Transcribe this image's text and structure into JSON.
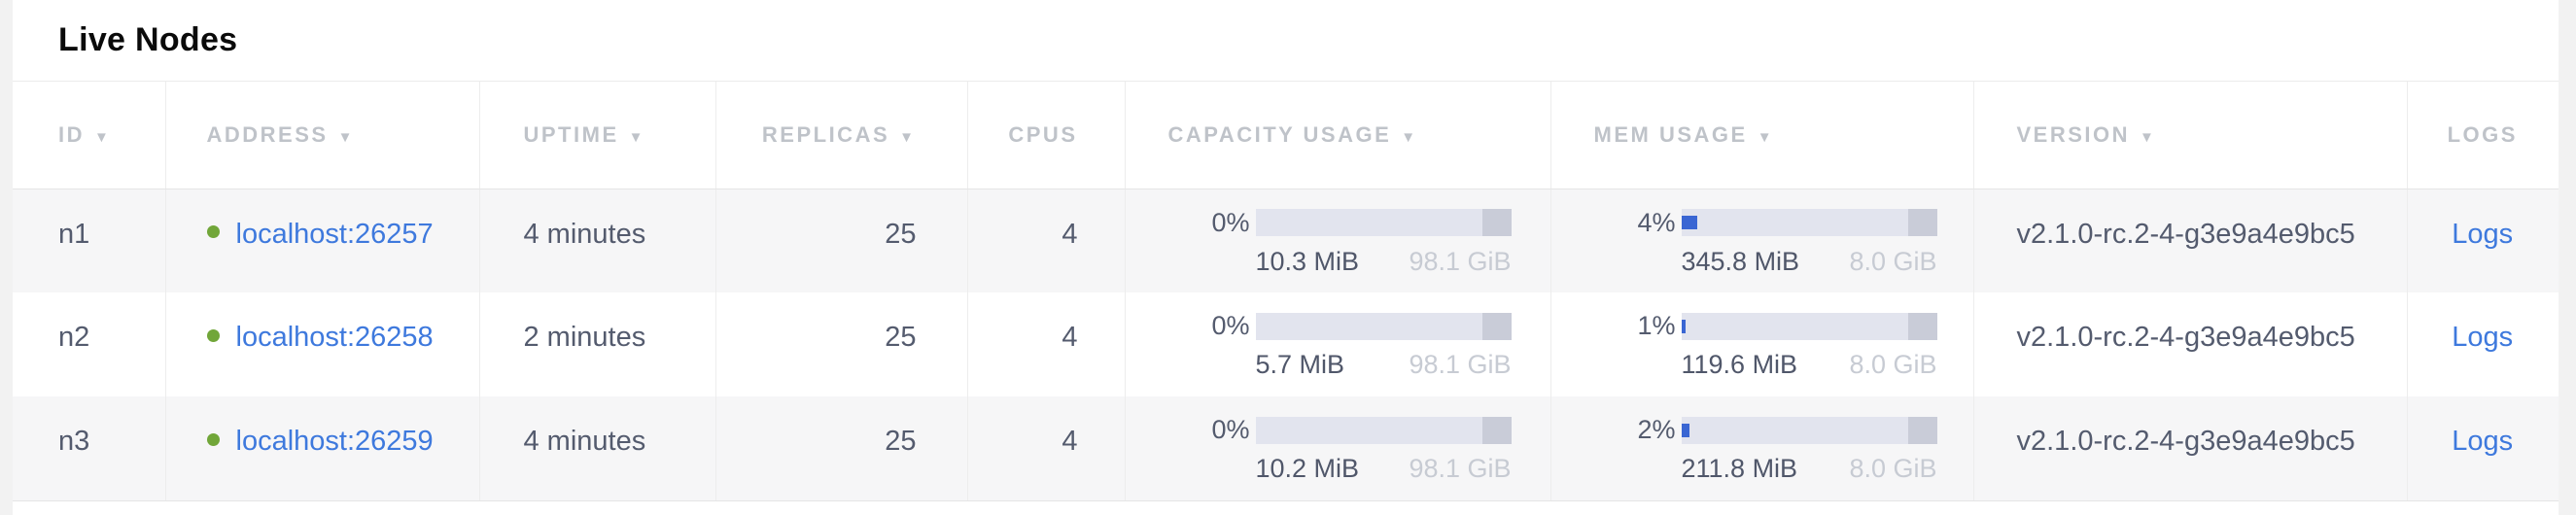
{
  "title": "Live Nodes",
  "icons": {
    "sort_desc": "▼"
  },
  "colors": {
    "link_blue": "#3e79dd",
    "status_green": "#71a639",
    "bar_track": "#e2e4ee",
    "bar_cap": "#c9ccd8",
    "bar_fill": "#3a66d3"
  },
  "table": {
    "columns": [
      {
        "key": "id",
        "label": "ID",
        "sortable": true
      },
      {
        "key": "address",
        "label": "ADDRESS",
        "sortable": true
      },
      {
        "key": "uptime",
        "label": "UPTIME",
        "sortable": true
      },
      {
        "key": "replicas",
        "label": "REPLICAS",
        "sortable": true
      },
      {
        "key": "cpus",
        "label": "CPUS",
        "sortable": false
      },
      {
        "key": "capacity",
        "label": "CAPACITY USAGE",
        "sortable": true
      },
      {
        "key": "mem",
        "label": "MEM USAGE",
        "sortable": true
      },
      {
        "key": "version",
        "label": "VERSION",
        "sortable": true
      },
      {
        "key": "logs",
        "label": "LOGS",
        "sortable": false
      }
    ],
    "rows": [
      {
        "id": "n1",
        "address": "localhost:26257",
        "status": "live",
        "uptime": "4 minutes",
        "replicas": "25",
        "cpus": "4",
        "capacity": {
          "percent": "0%",
          "percent_value": 0,
          "used": "10.3 MiB",
          "total": "98.1 GiB"
        },
        "mem": {
          "percent": "4%",
          "percent_value": 4,
          "used": "345.8 MiB",
          "total": "8.0 GiB"
        },
        "version": "v2.1.0-rc.2-4-g3e9a4e9bc5",
        "logs_label": "Logs"
      },
      {
        "id": "n2",
        "address": "localhost:26258",
        "status": "live",
        "uptime": "2 minutes",
        "replicas": "25",
        "cpus": "4",
        "capacity": {
          "percent": "0%",
          "percent_value": 0,
          "used": "5.7 MiB",
          "total": "98.1 GiB"
        },
        "mem": {
          "percent": "1%",
          "percent_value": 1,
          "used": "119.6 MiB",
          "total": "8.0 GiB"
        },
        "version": "v2.1.0-rc.2-4-g3e9a4e9bc5",
        "logs_label": "Logs"
      },
      {
        "id": "n3",
        "address": "localhost:26259",
        "status": "live",
        "uptime": "4 minutes",
        "replicas": "25",
        "cpus": "4",
        "capacity": {
          "percent": "0%",
          "percent_value": 0,
          "used": "10.2 MiB",
          "total": "98.1 GiB"
        },
        "mem": {
          "percent": "2%",
          "percent_value": 2,
          "used": "211.8 MiB",
          "total": "8.0 GiB"
        },
        "version": "v2.1.0-rc.2-4-g3e9a4e9bc5",
        "logs_label": "Logs"
      }
    ]
  }
}
